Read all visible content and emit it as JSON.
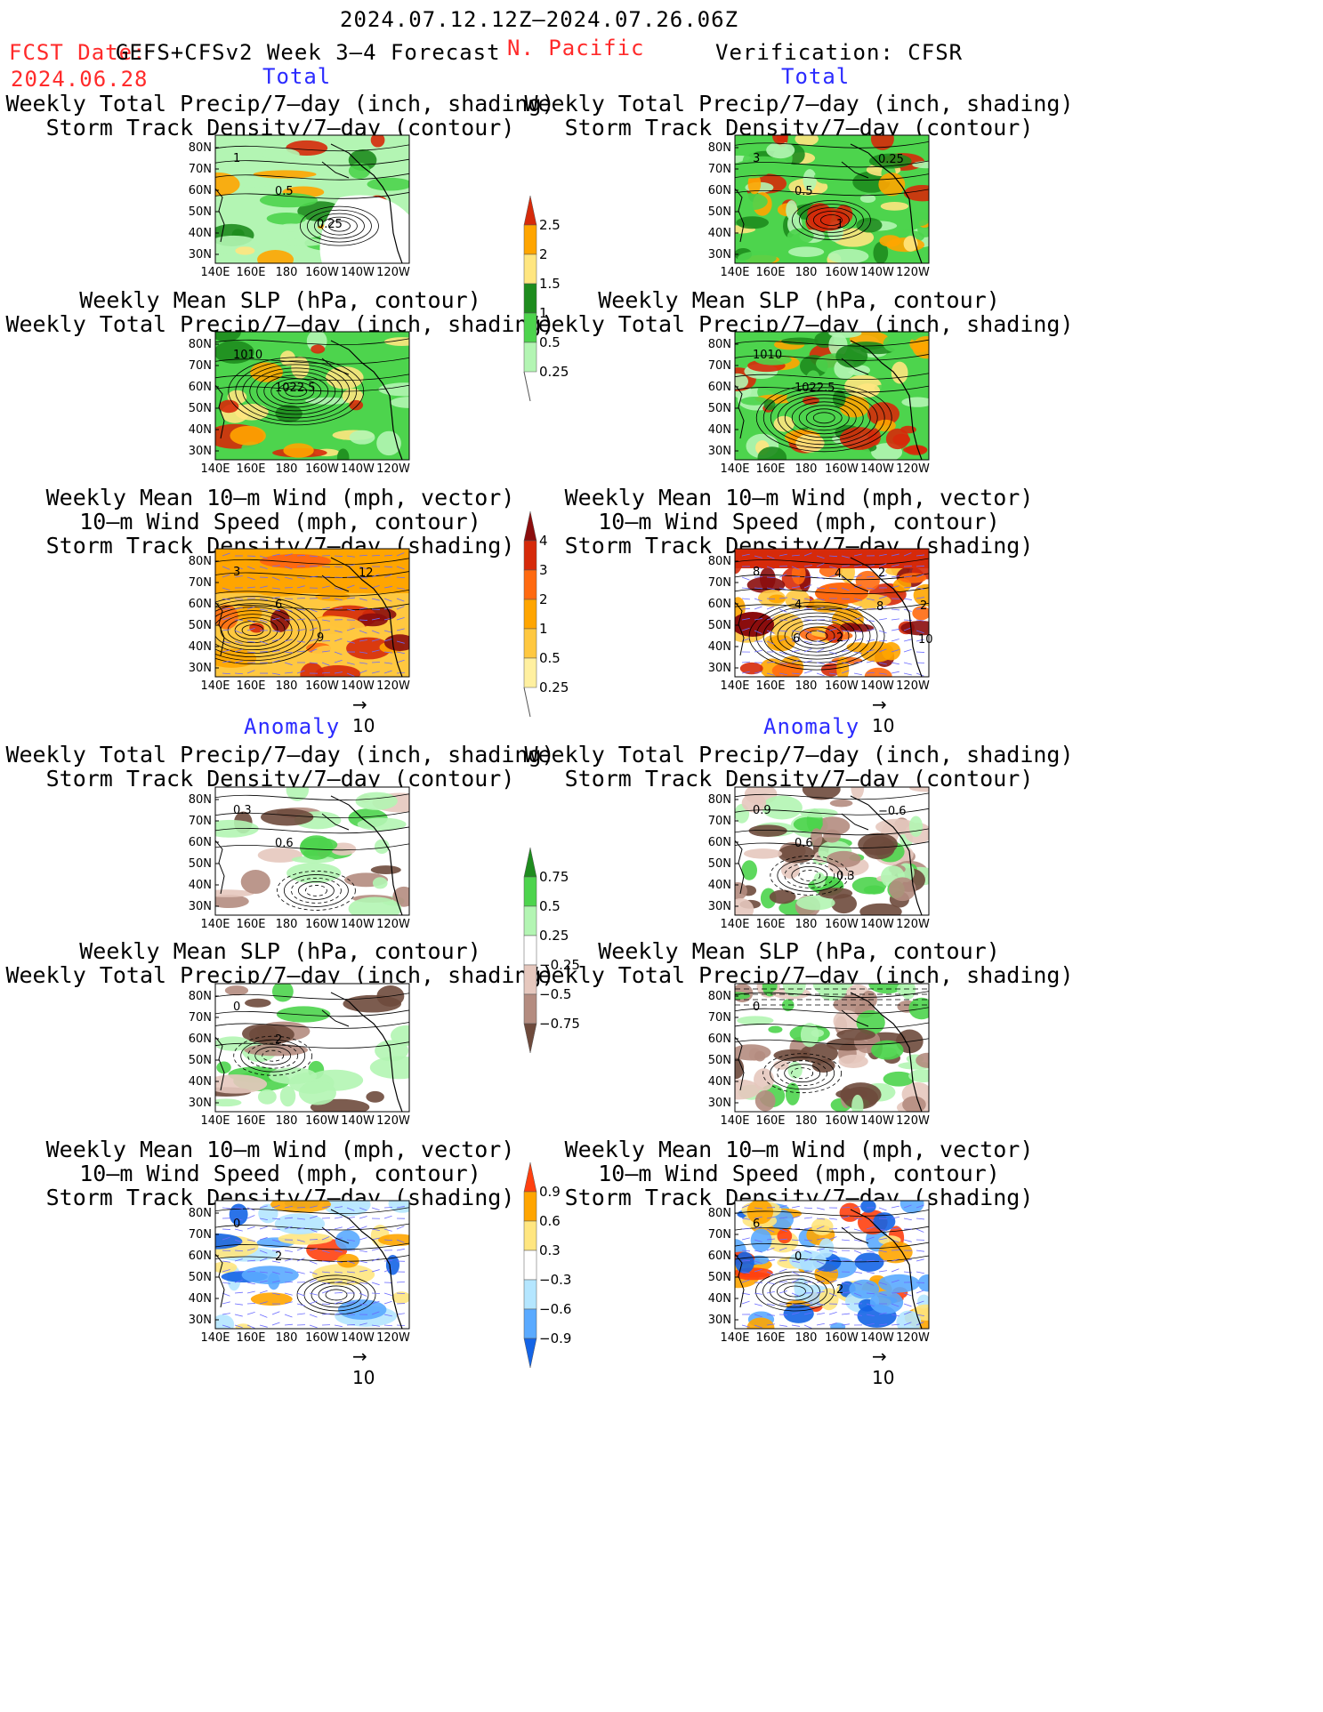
{
  "header": {
    "date_range": "2024.07.12.12Z–2024.07.26.06Z",
    "fcst_label": "FCST Date:",
    "product": "GEFS+CFSv2 Week 3–4 Forecast",
    "fcst_date": "2024.06.28",
    "region": "N. Pacific",
    "verification": "Verification: CFSR"
  },
  "section_labels": {
    "total": "Total",
    "anomaly": "Anomaly"
  },
  "titles": {
    "precip_storm": [
      "Weekly Total Precip/7–day (inch, shading)",
      "Storm Track Density/7–day (contour)"
    ],
    "slp_precip": [
      "Weekly Mean SLP (hPa, contour)",
      "Weekly Total Precip/7–day (inch, shading)"
    ],
    "wind_storm": [
      "Weekly Mean 10–m Wind (mph, vector)",
      "10–m Wind Speed (mph, contour)",
      "Storm Track Density/7–day (shading)"
    ]
  },
  "axes": {
    "lat_labels": [
      "80N",
      "70N",
      "60N",
      "50N",
      "40N",
      "30N"
    ],
    "lon_labels": [
      "140E",
      "160E",
      "180",
      "160W",
      "140W",
      "120W"
    ]
  },
  "vector_ref": "10",
  "colorbars": {
    "precip_total": {
      "labels": [
        "2.5",
        "2",
        "1.5",
        "1",
        "0.5",
        "0.25"
      ],
      "colors": [
        "#d62a0a",
        "#ffa500",
        "#ffe680",
        "#1e8c1e",
        "#4dd44d",
        "#b3f5b3"
      ]
    },
    "storm_total": {
      "labels": [
        "4",
        "3",
        "2",
        "1",
        "0.5",
        "0.25"
      ],
      "colors": [
        "#8b0d0d",
        "#d62a0a",
        "#ff6a10",
        "#ffa500",
        "#ffc840",
        "#fff0a0"
      ]
    },
    "precip_anom": {
      "labels": [
        "0.75",
        "0.5",
        "0.25",
        "−0.25",
        "−0.5",
        "−0.75"
      ],
      "colors": [
        "#1e8c1e",
        "#4dd44d",
        "#b3f5b3",
        "#ffffff",
        "#e6c8be",
        "#b48c80",
        "#6e4a3c"
      ]
    },
    "storm_anom": {
      "labels": [
        "0.9",
        "0.6",
        "0.3",
        "−0.3",
        "−0.6",
        "−0.9"
      ],
      "colors": [
        "#ff4010",
        "#ffa500",
        "#ffe680",
        "#ffffff",
        "#b4e6ff",
        "#5aaaff",
        "#1464e6"
      ]
    }
  },
  "contour_labels": {
    "p1": [
      "1",
      "0.5",
      "0.25"
    ],
    "p2": [
      "1010",
      "1022.5"
    ],
    "p3": [
      "3",
      "6",
      "9",
      "12"
    ],
    "p4": [
      "0.3",
      "0.6"
    ],
    "p5": [
      "0",
      "2"
    ],
    "p6": [
      "0",
      "2"
    ],
    "v1": [
      "3",
      "0.5",
      "1",
      "0.25"
    ],
    "v2": [
      "1010",
      "1022.5"
    ],
    "v3": [
      "8",
      "4",
      "2",
      "2",
      "2",
      "6",
      "4",
      "8",
      "10"
    ],
    "v4": [
      "0.9",
      "0.6",
      "0.3",
      "−0.6"
    ],
    "v5": [
      "0"
    ],
    "v6": [
      "6",
      "0",
      "2"
    ]
  }
}
